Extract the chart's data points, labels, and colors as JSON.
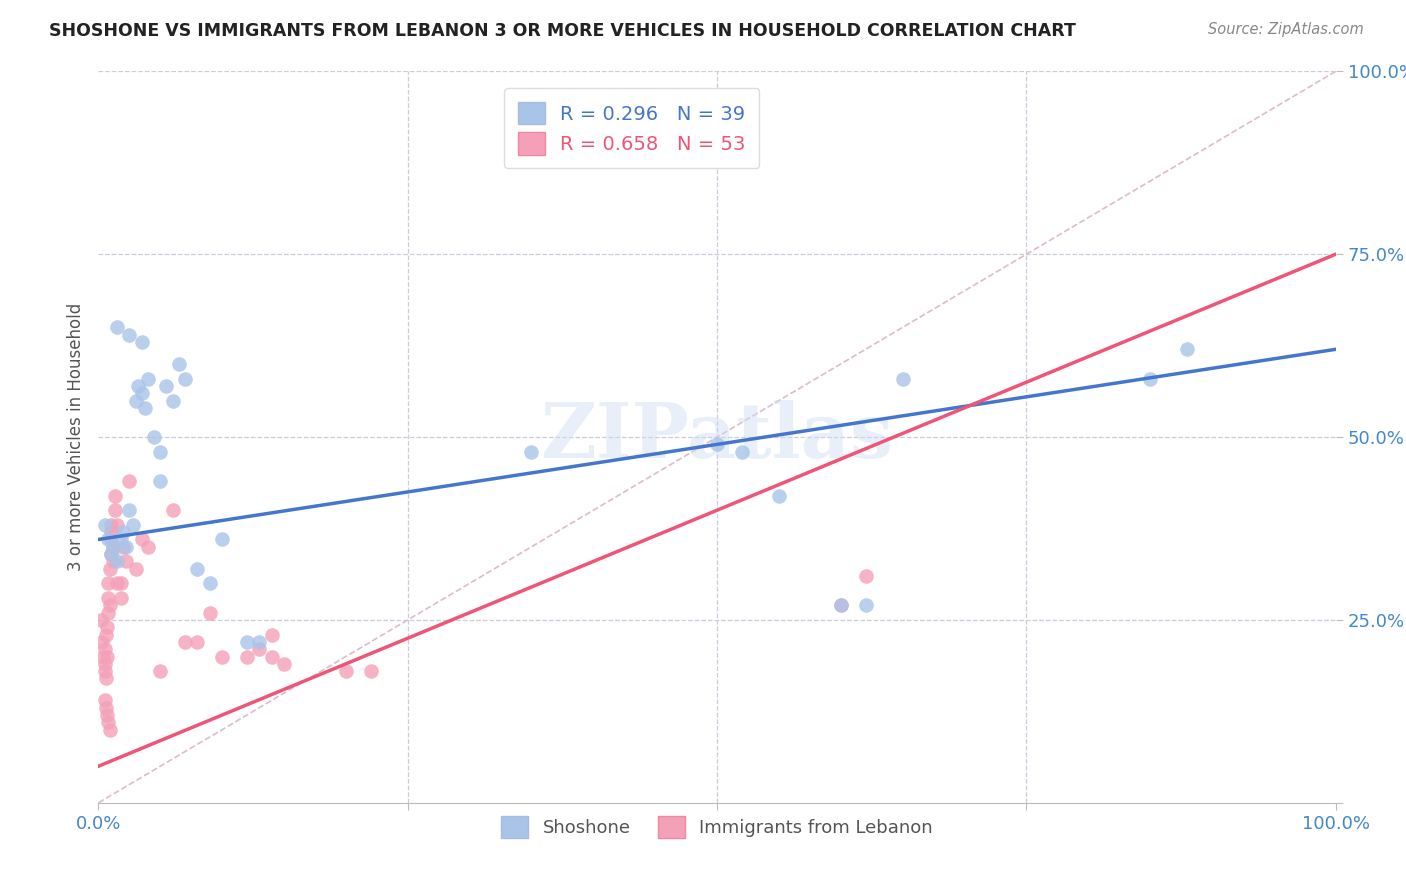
{
  "title": "SHOSHONE VS IMMIGRANTS FROM LEBANON 3 OR MORE VEHICLES IN HOUSEHOLD CORRELATION CHART",
  "source": "Source: ZipAtlas.com",
  "ylabel": "3 or more Vehicles in Household",
  "blue_R": 0.296,
  "blue_N": 39,
  "pink_R": 0.658,
  "pink_N": 53,
  "blue_color": "#a8c4e8",
  "pink_color": "#f4a0b8",
  "blue_line_color": "#4477cc",
  "pink_line_color": "#ee5577",
  "diagonal_color": "#ddbbcc",
  "watermark": "ZIPatlas",
  "blue_scatter_x": [
    0.005,
    0.008,
    0.01,
    0.012,
    0.015,
    0.018,
    0.02,
    0.022,
    0.025,
    0.028,
    0.03,
    0.032,
    0.035,
    0.038,
    0.04,
    0.045,
    0.05,
    0.055,
    0.06,
    0.065,
    0.07,
    0.08,
    0.09,
    0.1,
    0.12,
    0.13,
    0.35,
    0.5,
    0.52,
    0.55,
    0.6,
    0.62,
    0.65,
    0.85,
    0.88,
    0.015,
    0.025,
    0.035,
    0.05
  ],
  "blue_scatter_y": [
    0.38,
    0.36,
    0.34,
    0.35,
    0.33,
    0.36,
    0.37,
    0.35,
    0.4,
    0.38,
    0.55,
    0.57,
    0.56,
    0.54,
    0.58,
    0.5,
    0.44,
    0.57,
    0.55,
    0.6,
    0.58,
    0.32,
    0.3,
    0.36,
    0.22,
    0.22,
    0.48,
    0.49,
    0.48,
    0.42,
    0.27,
    0.27,
    0.58,
    0.58,
    0.62,
    0.65,
    0.64,
    0.63,
    0.48
  ],
  "pink_scatter_x": [
    0.002,
    0.003,
    0.004,
    0.005,
    0.005,
    0.005,
    0.006,
    0.006,
    0.007,
    0.007,
    0.008,
    0.008,
    0.008,
    0.009,
    0.009,
    0.01,
    0.01,
    0.01,
    0.01,
    0.012,
    0.012,
    0.013,
    0.013,
    0.015,
    0.015,
    0.018,
    0.018,
    0.02,
    0.022,
    0.025,
    0.03,
    0.035,
    0.04,
    0.05,
    0.06,
    0.07,
    0.08,
    0.09,
    0.1,
    0.12,
    0.14,
    0.15,
    0.2,
    0.22,
    0.13,
    0.14,
    0.6,
    0.62,
    0.005,
    0.006,
    0.007,
    0.008,
    0.009
  ],
  "pink_scatter_y": [
    0.25,
    0.22,
    0.2,
    0.18,
    0.19,
    0.21,
    0.17,
    0.23,
    0.24,
    0.2,
    0.26,
    0.28,
    0.3,
    0.32,
    0.27,
    0.38,
    0.37,
    0.36,
    0.34,
    0.35,
    0.33,
    0.4,
    0.42,
    0.38,
    0.3,
    0.3,
    0.28,
    0.35,
    0.33,
    0.44,
    0.32,
    0.36,
    0.35,
    0.18,
    0.4,
    0.22,
    0.22,
    0.26,
    0.2,
    0.2,
    0.2,
    0.19,
    0.18,
    0.18,
    0.21,
    0.23,
    0.27,
    0.31,
    0.14,
    0.13,
    0.12,
    0.11,
    0.1
  ],
  "background_color": "#ffffff",
  "grid_color": "#ccccdd",
  "title_color": "#222222",
  "axis_label_color": "#555555",
  "tick_label_color": "#4488cc",
  "legend_text_color_blue": "#4477cc",
  "legend_text_color_pink": "#ee5577"
}
